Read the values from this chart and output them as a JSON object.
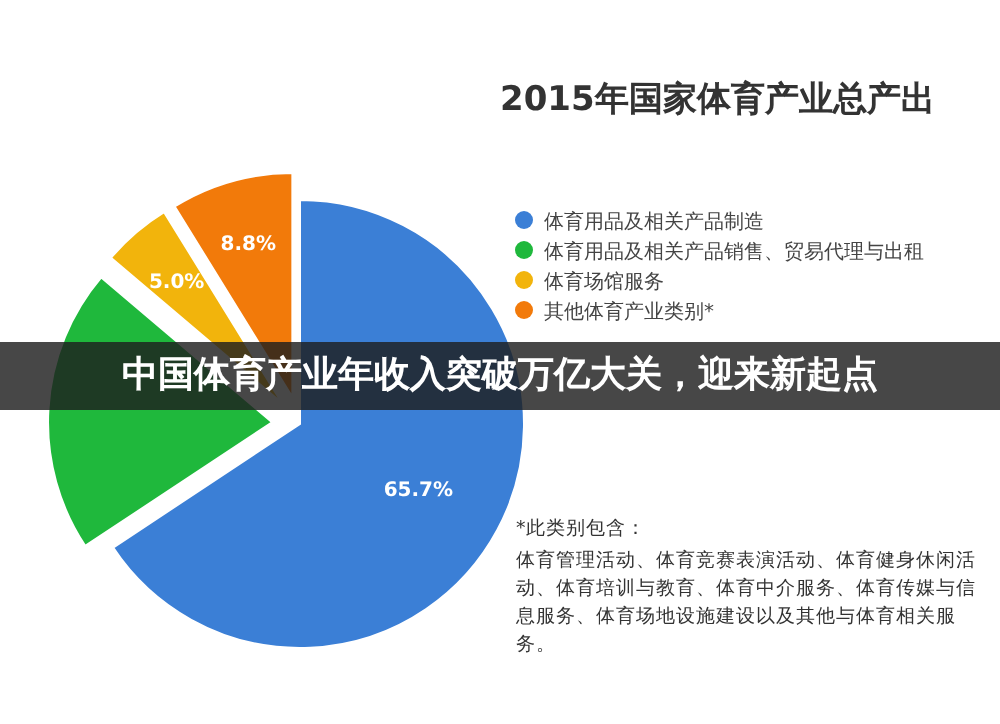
{
  "chart_data": {
    "type": "pie",
    "title": "2015年国家体育产业总产出",
    "categories": [
      "体育用品及相关产品制造",
      "体育用品及相关产品销售、贸易代理与出租",
      "体育场馆服务",
      "其他体育产业类别*"
    ],
    "values": [
      65.7,
      20.5,
      5.0,
      8.8
    ],
    "value_labels": [
      "65.7%",
      null,
      "5.0%",
      "8.8%"
    ],
    "colors": [
      "#3b7fd6",
      "#1fb83c",
      "#f2b40c",
      "#f27a0a"
    ],
    "legend": "right",
    "annotations": [
      "中国体育产业年收入突破万亿大关，迎来新起点",
      "*此类别包含：",
      "体育管理活动、体育竞赛表演活动、体育健身休闲活动、体育培训与教育、体育中介服务、体育传媒与信息服务、体育场地设施建设以及其他与体育相关服务。"
    ]
  }
}
